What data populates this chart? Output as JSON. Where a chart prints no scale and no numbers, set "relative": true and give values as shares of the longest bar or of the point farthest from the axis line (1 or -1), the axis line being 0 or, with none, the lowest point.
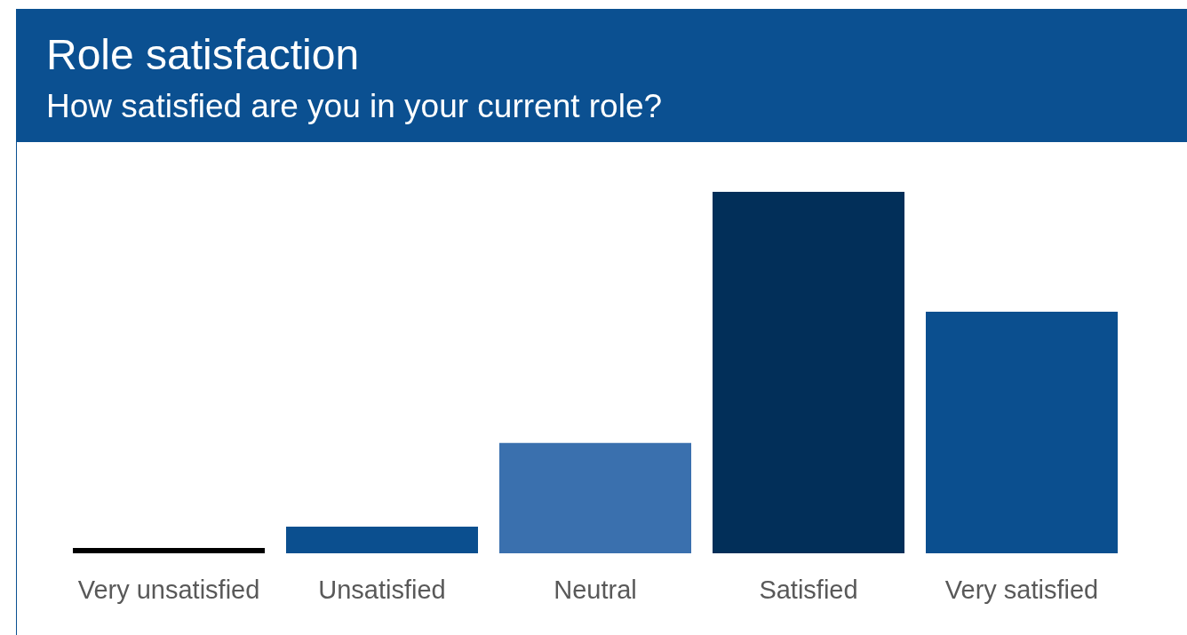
{
  "chart_data": {
    "type": "bar",
    "title": "Role satisfaction",
    "subtitle": "How satisfied are you in your current role?",
    "categories": [
      "Very unsatisfied",
      "Unsatisfied",
      "Neutral",
      "Satisfied",
      "Very satisfied"
    ],
    "values": [
      0.015,
      0.074,
      0.305,
      1,
      0.668
    ],
    "colors": [
      "#000000",
      "#0b4f8f",
      "#3a70ae",
      "#022f59",
      "#0b4f8f"
    ],
    "relative": true
  }
}
